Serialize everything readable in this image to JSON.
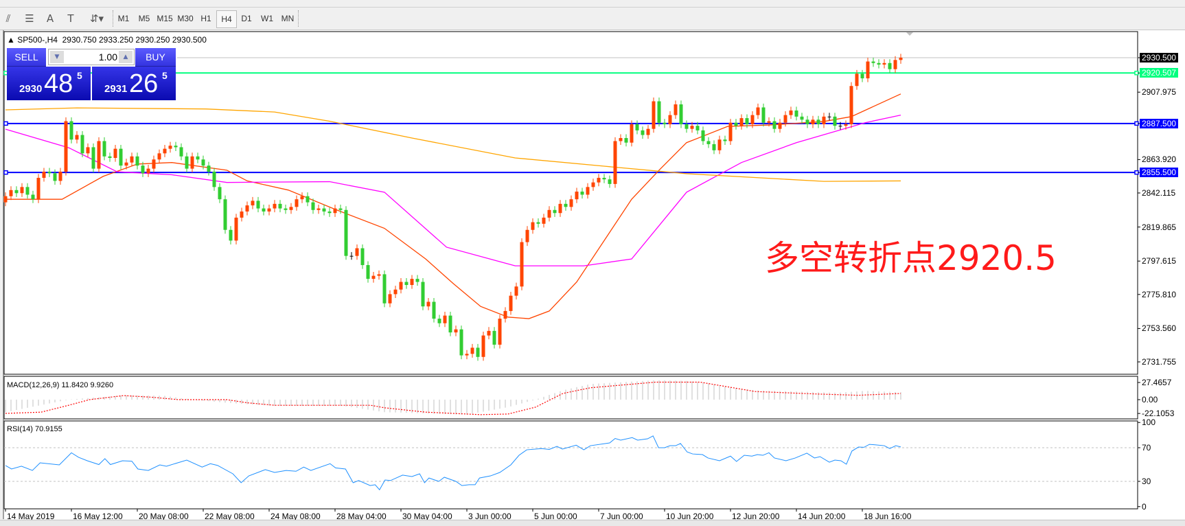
{
  "toolbar": {
    "tools": [
      {
        "icon": "elliott-wave-icon",
        "glyph": "⫽"
      },
      {
        "icon": "fibonacci-icon",
        "glyph": "☰"
      },
      {
        "icon": "text-icon",
        "glyph": "A"
      },
      {
        "icon": "text-label-icon",
        "glyph": "T"
      },
      {
        "icon": "arrows-icon",
        "glyph": "⇵▾"
      }
    ],
    "timeframes": [
      "M1",
      "M5",
      "M15",
      "M30",
      "H1",
      "H4",
      "D1",
      "W1",
      "MN"
    ],
    "active_timeframe": "H4"
  },
  "chart_header": {
    "symbol": "SP500-,H4",
    "open": "2930.750",
    "high": "2933.250",
    "low": "2930.250",
    "close": "2930.500"
  },
  "trade_panel": {
    "sell_label": "SELL",
    "buy_label": "BUY",
    "lot": "1.00",
    "sell_price": {
      "prefix": "2930",
      "big": "48",
      "sup": "5"
    },
    "buy_price": {
      "prefix": "2931",
      "big": "26",
      "sup": "5"
    }
  },
  "annotation": {
    "text": "多空转折点2920.5",
    "color": "#ff1a1a"
  },
  "price_axis": {
    "ticks": [
      "2907.975",
      "2863.920",
      "2842.115",
      "2819.865",
      "2797.615",
      "2775.810",
      "2753.560",
      "2731.755"
    ],
    "current": {
      "value": "2930.500",
      "bg": "#000000"
    },
    "lines": [
      {
        "value": "2920.507",
        "color": "#00ff7f"
      },
      {
        "value": "2887.500",
        "color": "#0000ff"
      },
      {
        "value": "2855.500",
        "color": "#0000ff"
      }
    ]
  },
  "macd_panel": {
    "label": "MACD(12,26,9) 11.8420 9.9260",
    "ticks": [
      "27.4657",
      "0.00",
      "-22.1053"
    ]
  },
  "rsi_panel": {
    "label": "RSI(14) 70.9155",
    "ticks": [
      "100",
      "70",
      "30",
      "0"
    ]
  },
  "time_axis": [
    "14 May 2019",
    "16 May 12:00",
    "20 May 08:00",
    "22 May 08:00",
    "24 May 08:00",
    "28 May 04:00",
    "30 May 04:00",
    "3 Jun 00:00",
    "5 Jun 00:00",
    "7 Jun 00:00",
    "10 Jun 20:00",
    "12 Jun 20:00",
    "14 Jun 20:00",
    "18 Jun 16:00"
  ],
  "chart_data": {
    "type": "candlestick",
    "symbol": "SP500-",
    "timeframe": "H4",
    "ylim": [
      2731.755,
      2930.5
    ],
    "bull_color": "#ff4500",
    "bear_color": "#32cd32",
    "first_open": 2836,
    "closes": [
      2840,
      2844,
      2842,
      2846,
      2841,
      2838,
      2852,
      2856,
      2855,
      2850,
      2856,
      2889,
      2877,
      2880,
      2868,
      2872,
      2858,
      2876,
      2866,
      2865,
      2871,
      2860,
      2862,
      2866,
      2860,
      2855,
      2858,
      2864,
      2868,
      2871,
      2873,
      2872,
      2866,
      2858,
      2866,
      2864,
      2860,
      2856,
      2846,
      2838,
      2818,
      2811,
      2826,
      2830,
      2834,
      2837,
      2832,
      2830,
      2832,
      2835,
      2832,
      2831,
      2833,
      2838,
      2840,
      2836,
      2831,
      2832,
      2830,
      2829,
      2832,
      2831,
      2801,
      2801,
      2806,
      2795,
      2786,
      2788,
      2789,
      2770,
      2776,
      2779,
      2784,
      2782,
      2786,
      2784,
      2768,
      2771,
      2760,
      2757,
      2762,
      2751,
      2753,
      2736,
      2737,
      2741,
      2735,
      2749,
      2752,
      2743,
      2760,
      2765,
      2775,
      2781,
      2810,
      2818,
      2823,
      2822,
      2826,
      2831,
      2829,
      2835,
      2833,
      2838,
      2843,
      2841,
      2846,
      2849,
      2852,
      2851,
      2848,
      2876,
      2878,
      2875,
      2887,
      2883,
      2880,
      2884,
      2902,
      2888,
      2887,
      2893,
      2900,
      2887,
      2884,
      2886,
      2883,
      2876,
      2874,
      2870,
      2877,
      2876,
      2888,
      2886,
      2891,
      2887,
      2893,
      2898,
      2888,
      2889,
      2884,
      2888,
      2893,
      2896,
      2892,
      2890,
      2887,
      2890,
      2887,
      2892,
      2892,
      2886,
      2886,
      2887,
      2912,
      2920,
      2917,
      2928,
      2927,
      2926,
      2927,
      2923,
      2929,
      2930.5
    ],
    "moving_averages": [
      {
        "color": "#ff4500",
        "points": [
          [
            0,
            2838
          ],
          [
            10.3,
            2838
          ],
          [
            17.8,
            2853
          ],
          [
            24,
            2861
          ],
          [
            30.3,
            2862
          ],
          [
            40.3,
            2857
          ],
          [
            44,
            2850
          ],
          [
            51.5,
            2844
          ],
          [
            60.3,
            2831
          ],
          [
            69,
            2819
          ],
          [
            76.5,
            2799
          ],
          [
            81.5,
            2783
          ],
          [
            86.5,
            2768
          ],
          [
            91.5,
            2761
          ],
          [
            95.3,
            2760
          ],
          [
            99,
            2765
          ],
          [
            104,
            2784
          ],
          [
            109,
            2811
          ],
          [
            114,
            2838
          ],
          [
            119,
            2857
          ],
          [
            124,
            2875
          ],
          [
            131.5,
            2885.6
          ],
          [
            139,
            2886.5
          ],
          [
            149,
            2888.8
          ],
          [
            154,
            2892
          ],
          [
            163,
            2906.8
          ]
        ]
      },
      {
        "color": "#ff00ff",
        "points": [
          [
            0,
            2883.8
          ],
          [
            11.5,
            2871.7
          ],
          [
            20.3,
            2856
          ],
          [
            30.3,
            2854
          ],
          [
            40.3,
            2849
          ],
          [
            59,
            2849.5
          ],
          [
            69,
            2842.6
          ],
          [
            80.3,
            2806.7
          ],
          [
            92.8,
            2794.5
          ],
          [
            105.3,
            2794.5
          ],
          [
            114,
            2799
          ],
          [
            124,
            2842.6
          ],
          [
            134,
            2862
          ],
          [
            144,
            2875
          ],
          [
            156.5,
            2888
          ],
          [
            163,
            2893
          ]
        ]
      },
      {
        "color": "#ffa500",
        "points": [
          [
            0,
            2896.4
          ],
          [
            13,
            2897.7
          ],
          [
            36.5,
            2897
          ],
          [
            49,
            2895
          ],
          [
            59,
            2889
          ],
          [
            74,
            2878
          ],
          [
            92.8,
            2865
          ],
          [
            109,
            2859.6
          ],
          [
            124,
            2854.7
          ],
          [
            149,
            2849.7
          ],
          [
            163,
            2850
          ]
        ]
      }
    ],
    "macd": {
      "ylim": [
        -22.1053,
        27.4657
      ],
      "histogram_color": "#c0c0c0",
      "signal_color": "#ff0000",
      "main": [
        [
          0,
          -20
        ],
        [
          11.5,
          0
        ],
        [
          21.5,
          7
        ],
        [
          29,
          6
        ],
        [
          34,
          0
        ],
        [
          40.3,
          -5
        ],
        [
          49,
          -10
        ],
        [
          61.5,
          -10
        ],
        [
          69,
          -20
        ],
        [
          84,
          -24
        ],
        [
          91.5,
          -12
        ],
        [
          96.5,
          0
        ],
        [
          101.5,
          15
        ],
        [
          106.5,
          25
        ],
        [
          118.3,
          31
        ],
        [
          124,
          30
        ],
        [
          127.8,
          26
        ],
        [
          131.5,
          20
        ],
        [
          136.5,
          15
        ],
        [
          144,
          13
        ],
        [
          151.5,
          11
        ],
        [
          156.5,
          14
        ],
        [
          163,
          11.842
        ]
      ],
      "signal": [
        [
          0,
          -22
        ],
        [
          6.5,
          -20
        ],
        [
          11.5,
          -9
        ],
        [
          15.3,
          0
        ],
        [
          21.5,
          6.5
        ],
        [
          26.5,
          4
        ],
        [
          31.5,
          0
        ],
        [
          40.3,
          0
        ],
        [
          44,
          -5
        ],
        [
          49,
          -9
        ],
        [
          66.5,
          -9
        ],
        [
          69,
          -13
        ],
        [
          76.5,
          -20
        ],
        [
          86.5,
          -24
        ],
        [
          91.5,
          -23
        ],
        [
          96.5,
          -12
        ],
        [
          101.5,
          10
        ],
        [
          106.5,
          19
        ],
        [
          118.3,
          28
        ],
        [
          126.5,
          28
        ],
        [
          136.5,
          13
        ],
        [
          147.8,
          9
        ],
        [
          155.3,
          7
        ],
        [
          163,
          9.926
        ]
      ]
    },
    "rsi": {
      "color": "#1e90ff",
      "levels": [
        70,
        30
      ],
      "points": [
        [
          0,
          48.8
        ],
        [
          1.1,
          44.7
        ],
        [
          2.9,
          48
        ],
        [
          4.9,
          43
        ],
        [
          6.3,
          52
        ],
        [
          9.8,
          49.6
        ],
        [
          12,
          64
        ],
        [
          13.3,
          58.6
        ],
        [
          14.9,
          54.5
        ],
        [
          17,
          50
        ],
        [
          18.1,
          57
        ],
        [
          19.1,
          50
        ],
        [
          21.3,
          54.5
        ],
        [
          23,
          54
        ],
        [
          24.1,
          44.7
        ],
        [
          26,
          43
        ],
        [
          28.1,
          49.6
        ],
        [
          29.3,
          48
        ],
        [
          33,
          55.3
        ],
        [
          35.8,
          47
        ],
        [
          37.3,
          51
        ],
        [
          38.6,
          49
        ],
        [
          41.4,
          39
        ],
        [
          42.9,
          28.4
        ],
        [
          44.3,
          36.5
        ],
        [
          47.3,
          44
        ],
        [
          49,
          40.6
        ],
        [
          51.1,
          43
        ],
        [
          52.9,
          42
        ],
        [
          54.3,
          47
        ],
        [
          55.6,
          43
        ],
        [
          59.1,
          51
        ],
        [
          60.1,
          46
        ],
        [
          61.9,
          44.7
        ],
        [
          63.3,
          28.4
        ],
        [
          64.3,
          31
        ],
        [
          66.4,
          25
        ],
        [
          67.3,
          26
        ],
        [
          68.1,
          20
        ],
        [
          69.1,
          31.6
        ],
        [
          70.1,
          31
        ],
        [
          72.3,
          37.4
        ],
        [
          74,
          35.7
        ],
        [
          75.4,
          39
        ],
        [
          76.3,
          28.4
        ],
        [
          77.1,
          34
        ],
        [
          78.9,
          30
        ],
        [
          79.9,
          34.9
        ],
        [
          82,
          30
        ],
        [
          83.1,
          25
        ],
        [
          84.4,
          26
        ],
        [
          85.5,
          26
        ],
        [
          86.3,
          34
        ],
        [
          88.3,
          36.5
        ],
        [
          90,
          40.6
        ],
        [
          92,
          49.6
        ],
        [
          93.5,
          61
        ],
        [
          94.9,
          67.5
        ],
        [
          97.6,
          69
        ],
        [
          99,
          68
        ],
        [
          100.4,
          71.6
        ],
        [
          101.4,
          68.4
        ],
        [
          103.9,
          73
        ],
        [
          105.3,
          67.5
        ],
        [
          106.5,
          72.4
        ],
        [
          110,
          75.7
        ],
        [
          111,
          81
        ],
        [
          112,
          79
        ],
        [
          114.1,
          82
        ],
        [
          115.1,
          79
        ],
        [
          116.9,
          80.6
        ],
        [
          117.9,
          84
        ],
        [
          118.9,
          70
        ],
        [
          120,
          70
        ],
        [
          121,
          72.4
        ],
        [
          122,
          72.4
        ],
        [
          122.9,
          75
        ],
        [
          124.1,
          65
        ],
        [
          125.1,
          62.6
        ],
        [
          126.9,
          61.8
        ],
        [
          127.9,
          57.8
        ],
        [
          130,
          54.5
        ],
        [
          132,
          60
        ],
        [
          133.1,
          53.7
        ],
        [
          134.5,
          61
        ],
        [
          135.9,
          60
        ],
        [
          136.9,
          61.8
        ],
        [
          137.9,
          61
        ],
        [
          139,
          64
        ],
        [
          140,
          57.8
        ],
        [
          142.1,
          54.5
        ],
        [
          143.8,
          57.8
        ],
        [
          145.9,
          63.5
        ],
        [
          147.3,
          57.8
        ],
        [
          148.3,
          59.4
        ],
        [
          150,
          52.8
        ],
        [
          151,
          55.3
        ],
        [
          152.1,
          54.5
        ],
        [
          153.1,
          50.4
        ],
        [
          154.1,
          66
        ],
        [
          155.3,
          70.8
        ],
        [
          156.3,
          70.5
        ],
        [
          157.3,
          74
        ],
        [
          158.3,
          73.5
        ],
        [
          160,
          72.4
        ],
        [
          161,
          69
        ],
        [
          162.1,
          72.4
        ],
        [
          163,
          70.9155
        ]
      ]
    }
  }
}
